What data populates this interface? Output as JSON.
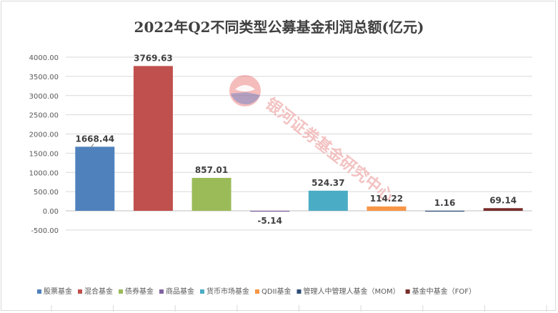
{
  "chart_data": {
    "type": "bar",
    "title": "2022年Q2不同类型公募基金利润总额(亿元)",
    "categories": [
      "股票基金",
      "混合基金",
      "债券基金",
      "商品基金",
      "货币市场基金",
      "QDII基金",
      "管理人中管理人基金（MOM）",
      "基金中基金（FOF）"
    ],
    "values": [
      1668.44,
      3769.63,
      857.01,
      -5.14,
      524.37,
      114.22,
      1.16,
      69.14
    ],
    "value_labels": [
      "1668.44",
      "3769.63",
      "857.01",
      "-5.14",
      "524.37",
      "114.22",
      "1.16",
      "69.14"
    ],
    "colors": [
      "#4f81bd",
      "#c0504d",
      "#9bbb59",
      "#8064a2",
      "#4bacc6",
      "#f79646",
      "#2c4d75",
      "#772c2a"
    ],
    "yticks": [
      -500,
      0,
      500,
      1000,
      1500,
      2000,
      2500,
      3000,
      3500,
      4000
    ],
    "ytick_labels": [
      "-500.00",
      "0.00",
      "500.00",
      "1000.00",
      "1500.00",
      "2000.00",
      "2500.00",
      "3000.00",
      "3500.00",
      "4000.00"
    ],
    "ylim": [
      -500,
      4000
    ],
    "xlabel": "",
    "ylabel": "",
    "legend_position": "bottom",
    "grid": true
  },
  "watermark": {
    "text": "银河证券基金研究中心",
    "colors": [
      "#e86a6a",
      "#7a86c2"
    ]
  }
}
